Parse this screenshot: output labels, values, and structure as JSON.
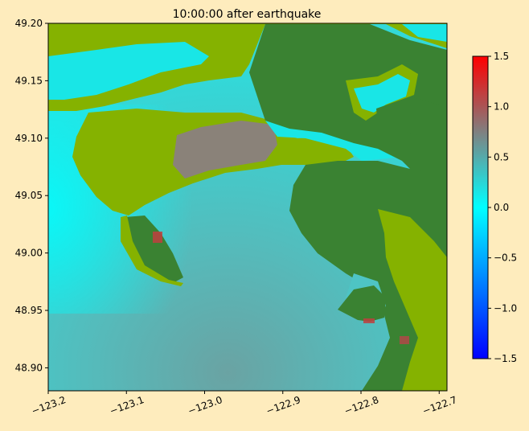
{
  "figure": {
    "background": "#feecbd"
  },
  "chart_data": {
    "type": "heatmap",
    "title": "10:00:00 after earthquake",
    "xlabel": "",
    "ylabel": "",
    "xlim": [
      -123.2,
      -122.69
    ],
    "ylim": [
      48.88,
      49.2
    ],
    "xticks": [
      -123.2,
      -123.1,
      -123.0,
      -122.9,
      -122.8,
      -122.7
    ],
    "xtick_labels": [
      "−123.2",
      "−123.1",
      "−123.0",
      "−122.9",
      "−122.8",
      "−122.7"
    ],
    "yticks": [
      48.9,
      48.95,
      49.0,
      49.05,
      49.1,
      49.15,
      49.2
    ],
    "ytick_labels": [
      "48.90",
      "48.95",
      "49.00",
      "49.05",
      "49.10",
      "49.15",
      "49.20"
    ],
    "colorbar": {
      "vmin": -1.5,
      "vmax": 1.5,
      "ticks": [
        -1.5,
        -1.0,
        -0.5,
        0.0,
        0.5,
        1.0,
        1.5
      ],
      "tick_labels": [
        "−1.5",
        "−1.0",
        "−0.5",
        "0.0",
        "0.5",
        "1.0",
        "1.5"
      ],
      "stops": [
        {
          "value": -1.5,
          "color": "#0000ff"
        },
        {
          "value": 0.0,
          "color": "#00ffff"
        },
        {
          "value": 0.75,
          "color": "#808080"
        },
        {
          "value": 1.5,
          "color": "#ff0000"
        }
      ]
    },
    "colors": {
      "lowland": "#85b200",
      "upland": "#3a8232",
      "water_near_zero": "#19e6e6",
      "water_elevated": "#5cb8b8",
      "inundated": "#8a8080"
    }
  }
}
